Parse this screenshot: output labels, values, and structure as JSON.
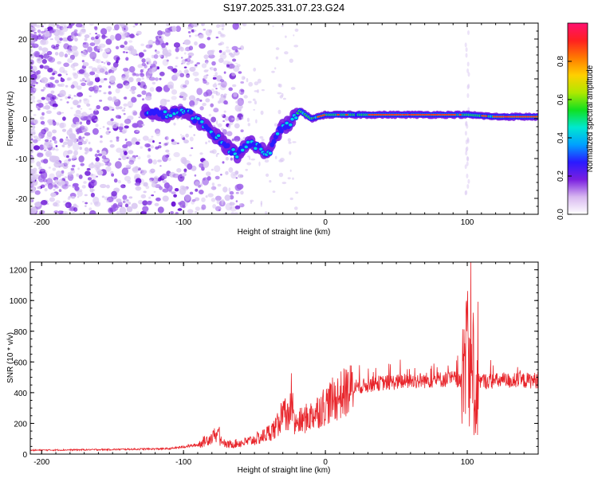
{
  "title": "S197.2025.331.07.23.G24",
  "colors": {
    "snr_line": "#e8252b",
    "blob_light": "#d9c7f2",
    "blob_mid": "#9a5ae8",
    "blob_dark": "#6a12d6",
    "axis": "#000000"
  },
  "chart_data": [
    {
      "type": "heatmap",
      "xlabel": "Height of straight line (km)",
      "ylabel": "Frequency (Hz)",
      "xlim": [
        -208,
        150
      ],
      "ylim": [
        -24,
        24
      ],
      "xticks": [
        -200,
        -100,
        0,
        100
      ],
      "yticks": [
        -20,
        -10,
        0,
        10,
        20
      ],
      "colorbar": {
        "label": "Normalized spectral amplitude",
        "range": [
          0,
          1
        ],
        "ticks": [
          "0.0",
          "0.2",
          "0.4",
          "0.6",
          "0.8"
        ],
        "stops": [
          "#ffffff",
          "#d8b8f0",
          "#7a1fe0",
          "#2a1aff",
          "#00a0ff",
          "#00e8d0",
          "#10e020",
          "#b0e800",
          "#ffd000",
          "#ff7a00",
          "#ff2020",
          "#ff1070"
        ]
      },
      "ridge": [
        {
          "x": -125,
          "y": 1.5
        },
        {
          "x": -110,
          "y": 1
        },
        {
          "x": -100,
          "y": 2
        },
        {
          "x": -95,
          "y": 1
        },
        {
          "x": -85,
          "y": -2
        },
        {
          "x": -78,
          "y": -4
        },
        {
          "x": -70,
          "y": -7
        },
        {
          "x": -62,
          "y": -9
        },
        {
          "x": -55,
          "y": -6
        },
        {
          "x": -48,
          "y": -7
        },
        {
          "x": -40,
          "y": -9
        },
        {
          "x": -33,
          "y": -3
        },
        {
          "x": -25,
          "y": -1
        },
        {
          "x": -18,
          "y": 2
        },
        {
          "x": -10,
          "y": 0
        },
        {
          "x": 0,
          "y": 1
        },
        {
          "x": 20,
          "y": 1
        },
        {
          "x": 50,
          "y": 1
        },
        {
          "x": 80,
          "y": 1
        },
        {
          "x": 100,
          "y": 1
        },
        {
          "x": 120,
          "y": 0.5
        },
        {
          "x": 150,
          "y": 0.5
        }
      ]
    },
    {
      "type": "line",
      "xlabel": "Height of straight line (km)",
      "ylabel": "SNR (10 * v/v)",
      "xlim": [
        -208,
        150
      ],
      "ylim": [
        0,
        1250
      ],
      "xticks": [
        -200,
        -100,
        0,
        100
      ],
      "yticks": [
        0,
        200,
        400,
        600,
        800,
        1000,
        1200
      ],
      "envelope": [
        {
          "x": -208,
          "y": 25
        },
        {
          "x": -150,
          "y": 30
        },
        {
          "x": -110,
          "y": 35
        },
        {
          "x": -90,
          "y": 60
        },
        {
          "x": -78,
          "y": 120
        },
        {
          "x": -70,
          "y": 60
        },
        {
          "x": -55,
          "y": 80
        },
        {
          "x": -45,
          "y": 110
        },
        {
          "x": -35,
          "y": 170
        },
        {
          "x": -28,
          "y": 270
        },
        {
          "x": -20,
          "y": 200
        },
        {
          "x": -10,
          "y": 250
        },
        {
          "x": 0,
          "y": 320
        },
        {
          "x": 10,
          "y": 380
        },
        {
          "x": 20,
          "y": 430
        },
        {
          "x": 35,
          "y": 460
        },
        {
          "x": 60,
          "y": 475
        },
        {
          "x": 90,
          "y": 490
        },
        {
          "x": 100,
          "y": 480
        },
        {
          "x": 110,
          "y": 475
        },
        {
          "x": 150,
          "y": 480
        }
      ],
      "peaks": [
        {
          "x": -75,
          "y": 210
        },
        {
          "x": -30,
          "y": 520
        },
        {
          "x": -24,
          "y": 540
        },
        {
          "x": 98,
          "y": 780
        },
        {
          "x": 101,
          "y": 1240
        },
        {
          "x": 105,
          "y": 900
        }
      ]
    }
  ]
}
